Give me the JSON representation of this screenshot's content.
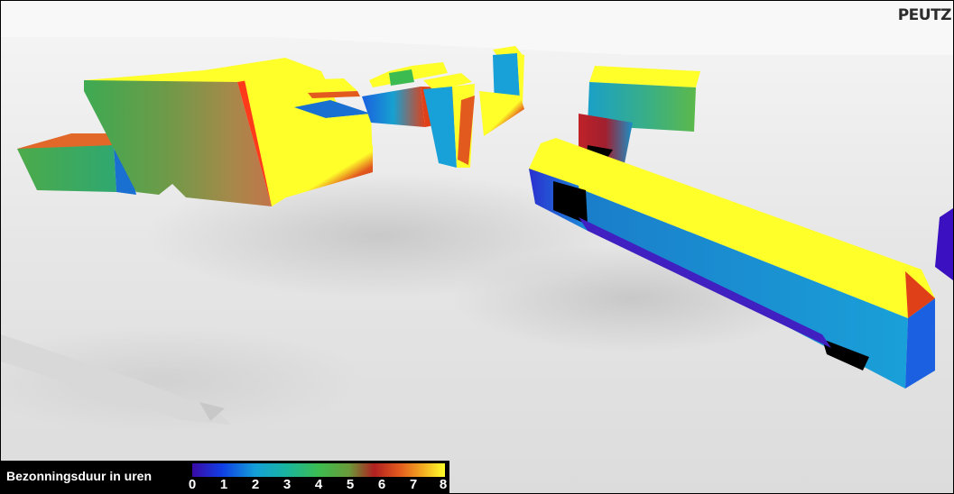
{
  "logo": {
    "text": "PEUTZ"
  },
  "legend": {
    "title": "Bezonningsduur in uren",
    "ticks": [
      "0",
      "1",
      "2",
      "3",
      "4",
      "5",
      "6",
      "7",
      "8"
    ],
    "colors": [
      "#3a0aa6",
      "#1040e6",
      "#14a0d8",
      "#18b4a0",
      "#3cbc50",
      "#6a9a3a",
      "#b02020",
      "#e25a1e",
      "#f0a020",
      "#ffff2a"
    ]
  }
}
